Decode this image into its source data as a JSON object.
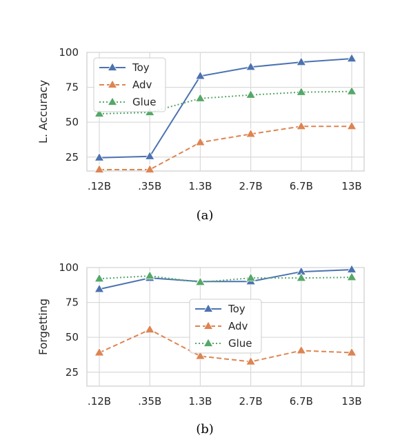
{
  "chart_data": [
    {
      "type": "line",
      "caption": "(a)",
      "ylabel": "L. Accuracy",
      "xlabel": "",
      "categories": [
        ".12B",
        ".35B",
        "1.3B",
        "2.7B",
        "6.7B",
        "13B"
      ],
      "yticks": [
        25,
        50,
        75,
        100
      ],
      "ylim": [
        15,
        100
      ],
      "grid": true,
      "legend_position": "upper-left",
      "series": [
        {
          "name": "Toy",
          "values": [
            24.5,
            25.5,
            83,
            89.5,
            93,
            95.5
          ],
          "color": "#4c72b0",
          "linestyle": "solid"
        },
        {
          "name": "Adv",
          "values": [
            16,
            16,
            35.5,
            41.5,
            47,
            47
          ],
          "color": "#dd8452",
          "linestyle": "dashed"
        },
        {
          "name": "Glue",
          "values": [
            56,
            57,
            67,
            69.5,
            71.5,
            72
          ],
          "color": "#55a868",
          "linestyle": "dotted"
        }
      ]
    },
    {
      "type": "line",
      "caption": "(b)",
      "ylabel": "Forgetting",
      "xlabel": "",
      "categories": [
        ".12B",
        ".35B",
        "1.3B",
        "2.7B",
        "6.7B",
        "13B"
      ],
      "yticks": [
        25,
        50,
        75,
        100
      ],
      "ylim": [
        15,
        100
      ],
      "grid": true,
      "legend_position": "center",
      "series": [
        {
          "name": "Toy",
          "values": [
            84.5,
            92.5,
            90,
            90,
            97,
            98.5
          ],
          "color": "#4c72b0",
          "linestyle": "solid"
        },
        {
          "name": "Adv",
          "values": [
            39,
            55.5,
            36.5,
            32.5,
            40.5,
            39
          ],
          "color": "#dd8452",
          "linestyle": "dashed"
        },
        {
          "name": "Glue",
          "values": [
            92,
            94,
            89.5,
            92.5,
            92.5,
            93
          ],
          "color": "#55a868",
          "linestyle": "dotted"
        }
      ]
    }
  ]
}
